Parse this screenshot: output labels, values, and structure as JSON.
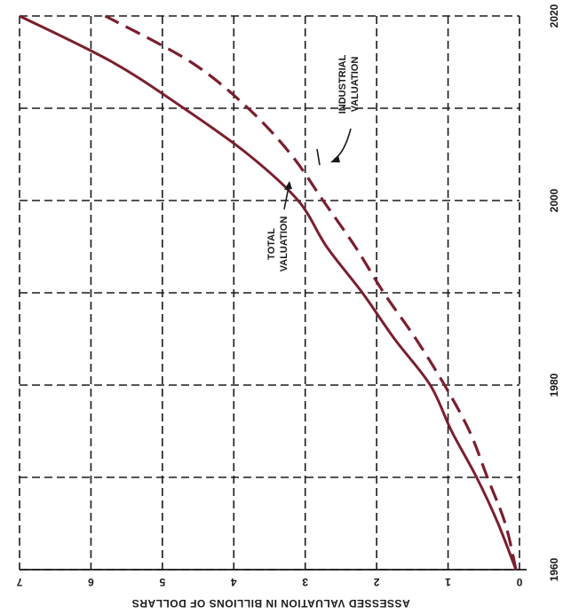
{
  "chart_data": {
    "type": "line",
    "xlabel": "",
    "ylabel": "ASSESSED VALUATION IN BILLIONS OF DOLLARS",
    "x_axis": "year",
    "y_axis": "billions of dollars",
    "xlim": [
      1960,
      2020
    ],
    "ylim": [
      0,
      7
    ],
    "x_ticks": [
      1960,
      1980,
      2000,
      2020
    ],
    "x_tick_labels": [
      "1960",
      "1980",
      "2000",
      "2020"
    ],
    "y_ticks": [
      0,
      1,
      2,
      3,
      4,
      5,
      6,
      7
    ],
    "y_tick_labels": [
      "0",
      "1",
      "2",
      "3",
      "4",
      "5",
      "6",
      "7"
    ],
    "grid": true,
    "orientation": "rotated-90",
    "series": [
      {
        "name": "TOTAL VALUATION",
        "style": "solid",
        "color": "#7a1f2e",
        "x": [
          1960,
          1965,
          1970,
          1975,
          1980,
          1985,
          1990,
          1995,
          2000,
          2005,
          2010,
          2015,
          2020
        ],
        "values": [
          0.05,
          0.3,
          0.6,
          0.95,
          1.25,
          1.75,
          2.2,
          2.7,
          3.1,
          3.8,
          4.7,
          5.7,
          7.0
        ]
      },
      {
        "name": "INDUSTRIAL VALUATION",
        "style": "dashed",
        "color": "#7a1f2e",
        "x": [
          1960,
          1965,
          1970,
          1975,
          1980,
          1985,
          1990,
          1995,
          2000,
          2005,
          2010,
          2015,
          2020
        ],
        "values": [
          0.05,
          0.2,
          0.45,
          0.7,
          1.05,
          1.45,
          1.9,
          2.3,
          2.75,
          3.2,
          3.8,
          4.6,
          5.8
        ]
      }
    ],
    "annotations": [
      {
        "text_lines": [
          "TOTAL",
          "VALUATION"
        ]
      },
      {
        "text_lines": [
          "INDUSTRIAL",
          "VALUATION"
        ]
      }
    ]
  }
}
